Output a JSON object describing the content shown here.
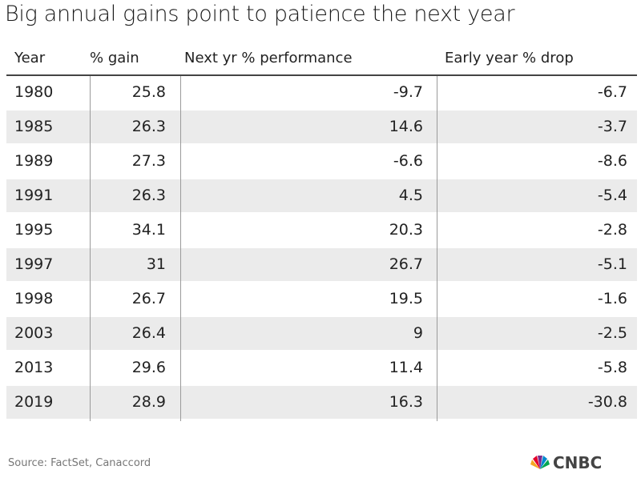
{
  "header": {
    "title": "Big annual gains point to patience the next year"
  },
  "table": {
    "headers": [
      "Year",
      "% gain",
      "Next yr % performance",
      "Early year % drop"
    ],
    "rows": [
      [
        1980,
        25.8,
        -9.7,
        -6.7
      ],
      [
        1985,
        26.3,
        14.6,
        -3.7
      ],
      [
        1989,
        27.3,
        -6.6,
        -8.6
      ],
      [
        1991,
        26.3,
        4.5,
        -5.4
      ],
      [
        1995,
        34.1,
        20.3,
        -2.8
      ],
      [
        1997,
        31,
        26.7,
        -5.1
      ],
      [
        1998,
        26.7,
        19.5,
        -1.6
      ],
      [
        2003,
        26.4,
        9,
        -2.5
      ],
      [
        2013,
        29.6,
        11.4,
        -5.8
      ],
      [
        2019,
        28.9,
        16.3,
        -30.8
      ]
    ]
  },
  "footer": {
    "source": "Source: FactSet, Canaccord",
    "logo": "CNBC"
  }
}
